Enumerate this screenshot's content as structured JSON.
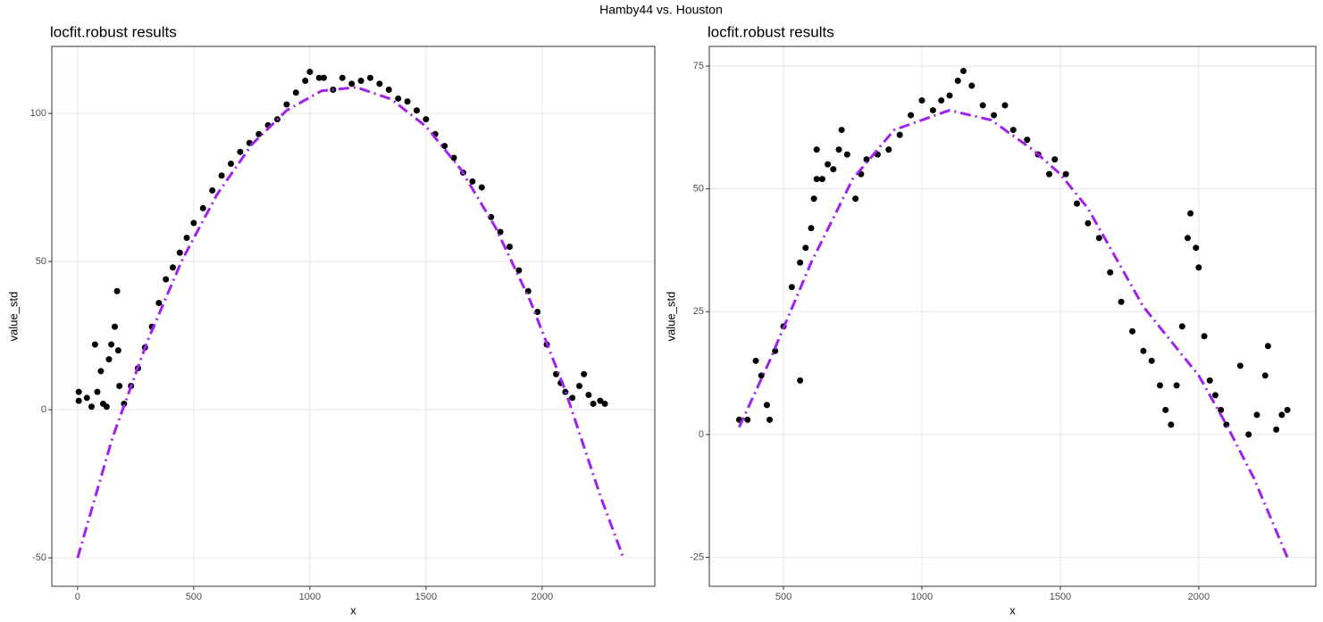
{
  "title": "Hamby44 vs. Houston",
  "chart_data": [
    {
      "type": "scatter",
      "title": "locfit.robust results",
      "x_label": "x",
      "y_label": "value_std",
      "xlim": [
        -111,
        2485
      ],
      "ylim": [
        -59.6,
        122.6
      ],
      "xticks": [
        0,
        500,
        1000,
        1500,
        2000
      ],
      "yticks": [
        -50,
        0,
        50,
        100
      ],
      "grid": true,
      "series": [
        {
          "mode": "points",
          "color": "#000000",
          "x": [
            5,
            5,
            40,
            60,
            75,
            85,
            100,
            110,
            125,
            135,
            145,
            160,
            170,
            175,
            180,
            200,
            230,
            260,
            290,
            320,
            350,
            380,
            410,
            440,
            470,
            500,
            540,
            580,
            620,
            660,
            700,
            740,
            780,
            820,
            860,
            900,
            940,
            980,
            1000,
            1040,
            1060,
            1100,
            1140,
            1180,
            1220,
            1260,
            1300,
            1340,
            1380,
            1420,
            1460,
            1500,
            1540,
            1580,
            1620,
            1660,
            1700,
            1740,
            1780,
            1820,
            1860,
            1900,
            1940,
            1980,
            2020,
            2060,
            2080,
            2100,
            2130,
            2160,
            2180,
            2200,
            2220,
            2250,
            2270
          ],
          "values": [
            6,
            3,
            4,
            1,
            22,
            6,
            13,
            2,
            1,
            17,
            22,
            28,
            40,
            20,
            8,
            2,
            8,
            14,
            21,
            28,
            36,
            44,
            48,
            53,
            58,
            63,
            68,
            74,
            79,
            83,
            87,
            90,
            93,
            96,
            98,
            103,
            107,
            111,
            114,
            112,
            112,
            108,
            112,
            110,
            111,
            112,
            110,
            108,
            105,
            104,
            101,
            98,
            93,
            89,
            85,
            80,
            77,
            75,
            65,
            60,
            55,
            47,
            40,
            33,
            22,
            12,
            9,
            6,
            4,
            8,
            12,
            5,
            2,
            3,
            2
          ]
        },
        {
          "mode": "line",
          "color": "#a020f0",
          "x": [
            0,
            150,
            300,
            450,
            600,
            750,
            900,
            1050,
            1200,
            1350,
            1500,
            1650,
            1800,
            1950,
            2100,
            2250,
            2350
          ],
          "values": [
            -50,
            -9.5,
            23,
            50.5,
            72.6,
            89.5,
            101,
            107.6,
            108.8,
            104.8,
            95.6,
            81.1,
            61.4,
            36.5,
            6.4,
            -29,
            -50
          ]
        }
      ]
    },
    {
      "type": "scatter",
      "title": "locfit.robust results",
      "x_label": "x",
      "y_label": "value_std",
      "xlim": [
        232,
        2423
      ],
      "ylim": [
        -30.9,
        79
      ],
      "xticks": [
        500,
        1000,
        1500,
        2000
      ],
      "yticks": [
        -25,
        0,
        25,
        50,
        75
      ],
      "grid": true,
      "series": [
        {
          "mode": "points",
          "color": "#000000",
          "x": [
            340,
            370,
            400,
            420,
            440,
            450,
            470,
            500,
            530,
            560,
            560,
            580,
            600,
            610,
            620,
            620,
            640,
            660,
            680,
            700,
            710,
            730,
            760,
            780,
            800,
            840,
            880,
            920,
            960,
            1000,
            1040,
            1070,
            1100,
            1130,
            1150,
            1180,
            1220,
            1260,
            1300,
            1330,
            1380,
            1420,
            1460,
            1480,
            1520,
            1560,
            1600,
            1640,
            1680,
            1720,
            1760,
            1800,
            1830,
            1860,
            1880,
            1900,
            1920,
            1940,
            1960,
            1970,
            1990,
            2000,
            2020,
            2040,
            2060,
            2080,
            2100,
            2150,
            2180,
            2210,
            2240,
            2250,
            2280,
            2300,
            2320
          ],
          "values": [
            3,
            3,
            15,
            12,
            6,
            3,
            17,
            22,
            30,
            35,
            11,
            38,
            42,
            48,
            58,
            52,
            52,
            55,
            54,
            58,
            62,
            57,
            48,
            53,
            56,
            57,
            58,
            61,
            65,
            68,
            66,
            68,
            69,
            72,
            74,
            71,
            67,
            65,
            67,
            62,
            60,
            57,
            53,
            56,
            53,
            47,
            43,
            40,
            33,
            27,
            21,
            17,
            15,
            10,
            5,
            2,
            10,
            22,
            40,
            45,
            38,
            34,
            20,
            11,
            8,
            5,
            2,
            14,
            0,
            4,
            12,
            18,
            1,
            4,
            5
          ]
        },
        {
          "mode": "line",
          "color": "#a020f0",
          "x": [
            340,
            450,
            600,
            750,
            900,
            1100,
            1250,
            1400,
            1500,
            1600,
            1700,
            1800,
            1900,
            2000,
            2100,
            2200,
            2320
          ],
          "values": [
            1.5,
            15,
            35,
            52,
            62,
            66,
            64,
            58,
            53,
            46,
            36,
            26,
            19,
            12,
            2,
            -9,
            -25
          ]
        }
      ]
    }
  ]
}
